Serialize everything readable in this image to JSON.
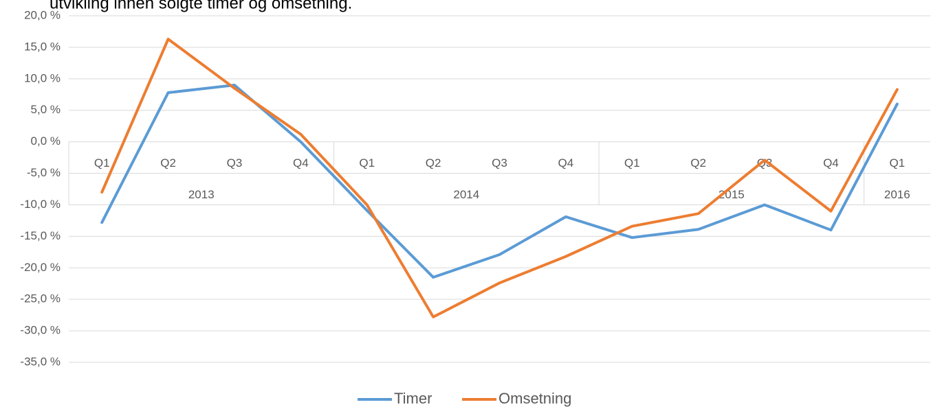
{
  "chart_data": {
    "type": "line",
    "title": "utvikling innen solgte timer og omsetning.",
    "categories": [
      "Q1",
      "Q2",
      "Q3",
      "Q4",
      "Q1",
      "Q2",
      "Q3",
      "Q4",
      "Q1",
      "Q2",
      "Q3",
      "Q4",
      "Q1"
    ],
    "groups": [
      {
        "label": "2013",
        "span": 4
      },
      {
        "label": "2014",
        "span": 4
      },
      {
        "label": "2015",
        "span": 4
      },
      {
        "label": "2016",
        "span": 1
      }
    ],
    "series": [
      {
        "name": "Timer",
        "color": "#5b9bd5",
        "values": [
          -12.8,
          7.8,
          9.0,
          0.0,
          -10.9,
          -21.5,
          -17.9,
          -11.9,
          -15.2,
          -13.9,
          -10.0,
          -14.0,
          6.0
        ]
      },
      {
        "name": "Omsetning",
        "color": "#ed7d31",
        "values": [
          -8.0,
          16.3,
          8.5,
          1.2,
          -10.0,
          -27.8,
          -22.4,
          -18.2,
          -13.4,
          -11.4,
          -2.9,
          -11.0,
          8.3
        ]
      }
    ],
    "ylim": [
      -35,
      20
    ],
    "yticks": [
      {
        "value": -35,
        "label": "-35,0 %"
      },
      {
        "value": -30,
        "label": "-30,0 %"
      },
      {
        "value": -25,
        "label": "-25,0 %"
      },
      {
        "value": -20,
        "label": "-20,0 %"
      },
      {
        "value": -15,
        "label": "-15,0 %"
      },
      {
        "value": -10,
        "label": "-10,0 %"
      },
      {
        "value": -5,
        "label": "-5,0 %"
      },
      {
        "value": 0,
        "label": "0,0 %"
      },
      {
        "value": 5,
        "label": "5,0 %"
      },
      {
        "value": 10,
        "label": "10,0 %"
      },
      {
        "value": 15,
        "label": "15,0 %"
      },
      {
        "value": 20,
        "label": "20,0 %"
      }
    ],
    "grid": true,
    "legend": "bottom"
  }
}
